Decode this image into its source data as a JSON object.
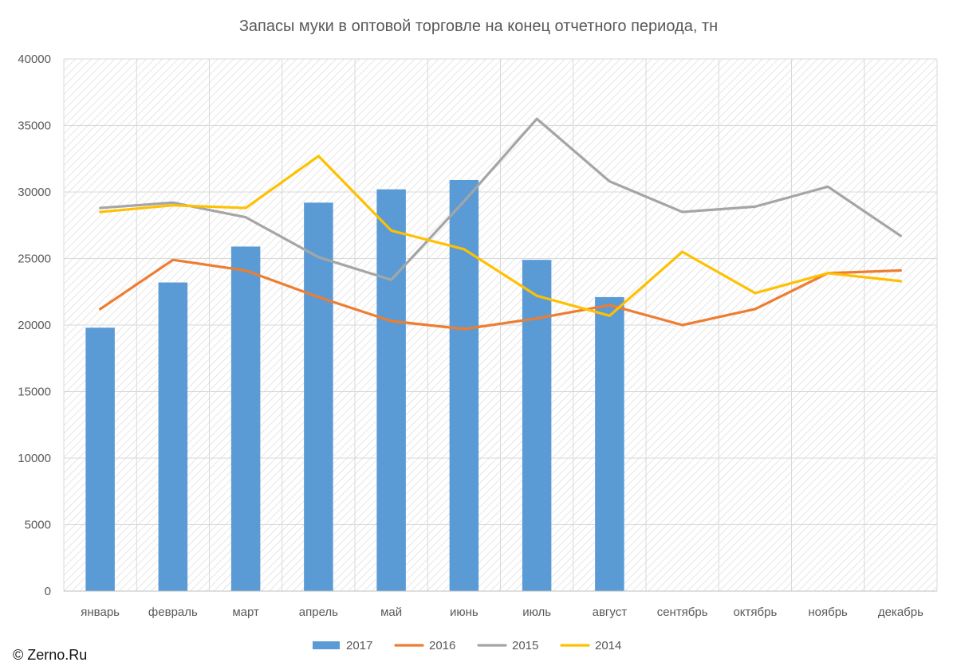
{
  "chart_data": {
    "type": "bar",
    "title": "Запасы муки в оптовой торговле на конец отчетного периода, тн",
    "categories": [
      "январь",
      "февраль",
      "март",
      "апрель",
      "май",
      "июнь",
      "июль",
      "август",
      "сентябрь",
      "октябрь",
      "ноябрь",
      "декабрь"
    ],
    "ylim": [
      0,
      40000
    ],
    "yticks": [
      0,
      5000,
      10000,
      15000,
      20000,
      25000,
      30000,
      35000,
      40000
    ],
    "grid": true,
    "legend_position": "bottom",
    "series": [
      {
        "name": "2017",
        "type": "bar",
        "color": "#5B9BD5",
        "values": [
          19800,
          23200,
          25900,
          29200,
          30200,
          30900,
          24900,
          22100,
          null,
          null,
          null,
          null
        ]
      },
      {
        "name": "2016",
        "type": "line",
        "color": "#ED7D31",
        "values": [
          21200,
          24900,
          24100,
          22100,
          20300,
          19700,
          20500,
          21500,
          20000,
          21200,
          23900,
          24100
        ]
      },
      {
        "name": "2015",
        "type": "line",
        "color": "#A5A5A5",
        "values": [
          28800,
          29200,
          28100,
          25100,
          23400,
          29300,
          35500,
          30800,
          28500,
          28900,
          30400,
          26700
        ]
      },
      {
        "name": "2014",
        "type": "line",
        "color": "#FFC000",
        "values": [
          28500,
          29000,
          28800,
          32700,
          27100,
          25700,
          22200,
          20700,
          25500,
          22400,
          23900,
          23300
        ]
      }
    ]
  },
  "footer": {
    "copyright": "© Zerno.Ru"
  }
}
